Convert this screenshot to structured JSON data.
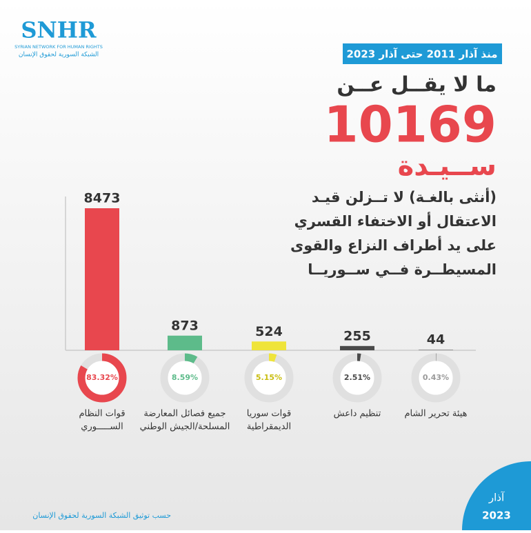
{
  "logo": {
    "name": "SNHR",
    "english": "SYRIAN NETWORK FOR HUMAN RIGHTS",
    "arabic": "الشبكة السورية لحقوق الإنسان"
  },
  "header": {
    "badge": "منذ آذار 2011 حتى آذار 2023",
    "lead": "ما لا يقــل عــن",
    "total": "10169",
    "noun": "ســيـدة",
    "description": [
      "(أنثى بالغـة) لا تــزلن قيـد",
      "الاعتقال أو الاختفاء القسري",
      "على يد أطراف النزاع والقوى",
      "المسيطــرة فــي ســوريــا"
    ]
  },
  "chart_data": {
    "type": "bar",
    "categories": [
      [
        "قوات النظام",
        "الســـــوري"
      ],
      [
        "جميع فصائل المعارضة",
        "المسلحة/الجيش الوطني"
      ],
      [
        "قوات سوريا",
        "الديمقراطية"
      ],
      [
        "تنظيم داعش"
      ],
      [
        "هيئة تحرير الشام"
      ]
    ],
    "values": [
      8473,
      873,
      524,
      255,
      44
    ],
    "colors": [
      "#e8474e",
      "#5dbb8a",
      "#efe43a",
      "#4a4a4a",
      "#9a9a9a"
    ],
    "shares": {
      "values": [
        83.32,
        8.59,
        5.15,
        2.51,
        0.43
      ],
      "value_labels": [
        "83.32%",
        "8.59%",
        "5.15%",
        "2.51%",
        "0.43%"
      ]
    }
  },
  "footer": {
    "source": "حسب توثيق الشبكة السورية لحقوق الإنسان",
    "month": "آذار",
    "year": "2023"
  }
}
